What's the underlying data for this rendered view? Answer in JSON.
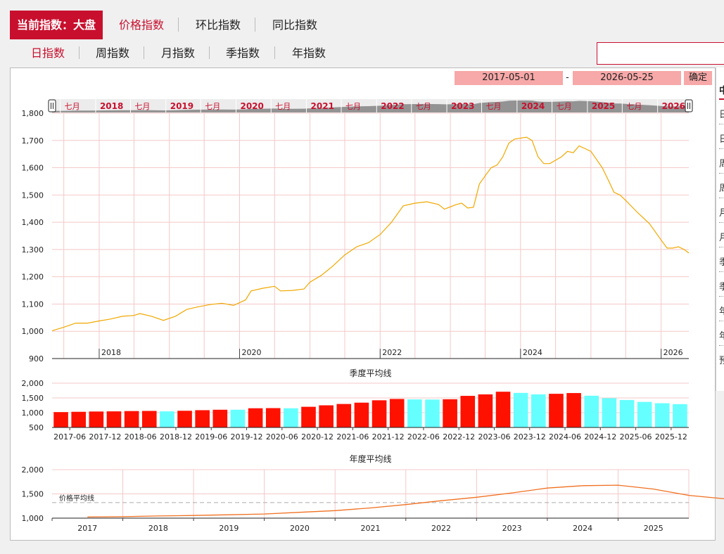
{
  "header": {
    "current_index_label": "当前指数：大盘",
    "tabs": [
      {
        "label": "价格指数",
        "active": true
      },
      {
        "label": "环比指数",
        "active": false
      },
      {
        "label": "同比指数",
        "active": false
      }
    ]
  },
  "period_tabs": [
    {
      "label": "日指数",
      "active": true
    },
    {
      "label": "周指数",
      "active": false
    },
    {
      "label": "月指数",
      "active": false
    },
    {
      "label": "季指数",
      "active": false
    },
    {
      "label": "年指数",
      "active": false
    }
  ],
  "search": {
    "value": ""
  },
  "date_range": {
    "start": "2017-05-01",
    "end": "2026-05-25",
    "separator": "-",
    "confirm_label": "确定"
  },
  "side_list": {
    "items": [
      "中",
      "日",
      "日",
      "周",
      "周",
      "月",
      "月",
      "季",
      "季",
      "年",
      "年",
      "预"
    ]
  },
  "navigator": {
    "labels": [
      {
        "text": "七月",
        "year": false
      },
      {
        "text": "2018",
        "year": true
      },
      {
        "text": "七月",
        "year": false
      },
      {
        "text": "2019",
        "year": true
      },
      {
        "text": "七月",
        "year": false
      },
      {
        "text": "2020",
        "year": true
      },
      {
        "text": "七月",
        "year": false
      },
      {
        "text": "2021",
        "year": true
      },
      {
        "text": "七月",
        "year": false
      },
      {
        "text": "2022",
        "year": true
      },
      {
        "text": "七月",
        "year": false
      },
      {
        "text": "2023",
        "year": true
      },
      {
        "text": "七月",
        "year": false
      },
      {
        "text": "2024",
        "year": true
      },
      {
        "text": "七月",
        "year": false
      },
      {
        "text": "2025",
        "year": true
      },
      {
        "text": "七月",
        "year": false
      },
      {
        "text": "2026",
        "year": true
      }
    ]
  },
  "colors": {
    "accent": "#c8102e",
    "line": "#f0a800",
    "bar_up": "#ff1100",
    "bar_down": "#66ffff",
    "annual_line": "#f07020",
    "grid": "#f4c8c8"
  },
  "chart_data": [
    {
      "type": "line",
      "title": "",
      "ylim": [
        900,
        1800
      ],
      "yticks": [
        "900",
        "1,000",
        "1,100",
        "1,200",
        "1,300",
        "1,400",
        "1,500",
        "1,600",
        "1,700",
        "1,800"
      ],
      "xtick_labels": [
        "2018",
        "2020",
        "2022",
        "2024",
        "2026"
      ],
      "x_range": [
        "2017-05-01",
        "2026-05-25"
      ],
      "points": [
        [
          "2017-05-01",
          1002
        ],
        [
          "2017-07-01",
          1015
        ],
        [
          "2017-09-01",
          1030
        ],
        [
          "2017-11-01",
          1030
        ],
        [
          "2018-01-01",
          1038
        ],
        [
          "2018-03-01",
          1045
        ],
        [
          "2018-05-01",
          1055
        ],
        [
          "2018-07-01",
          1058
        ],
        [
          "2018-08-01",
          1065
        ],
        [
          "2018-10-01",
          1055
        ],
        [
          "2018-12-01",
          1040
        ],
        [
          "2019-02-01",
          1055
        ],
        [
          "2019-04-01",
          1080
        ],
        [
          "2019-06-01",
          1090
        ],
        [
          "2019-08-01",
          1098
        ],
        [
          "2019-10-01",
          1103
        ],
        [
          "2019-12-01",
          1095
        ],
        [
          "2020-02-01",
          1115
        ],
        [
          "2020-03-01",
          1148
        ],
        [
          "2020-05-01",
          1158
        ],
        [
          "2020-07-01",
          1165
        ],
        [
          "2020-08-01",
          1148
        ],
        [
          "2020-10-01",
          1150
        ],
        [
          "2020-12-01",
          1155
        ],
        [
          "2021-01-01",
          1180
        ],
        [
          "2021-03-01",
          1205
        ],
        [
          "2021-05-01",
          1240
        ],
        [
          "2021-07-01",
          1280
        ],
        [
          "2021-09-01",
          1310
        ],
        [
          "2021-11-01",
          1325
        ],
        [
          "2022-01-01",
          1355
        ],
        [
          "2022-03-01",
          1400
        ],
        [
          "2022-05-01",
          1460
        ],
        [
          "2022-07-01",
          1470
        ],
        [
          "2022-09-01",
          1475
        ],
        [
          "2022-11-01",
          1465
        ],
        [
          "2022-12-01",
          1448
        ],
        [
          "2023-02-01",
          1465
        ],
        [
          "2023-03-01",
          1470
        ],
        [
          "2023-04-01",
          1452
        ],
        [
          "2023-05-01",
          1455
        ],
        [
          "2023-06-01",
          1540
        ],
        [
          "2023-07-01",
          1570
        ],
        [
          "2023-08-01",
          1600
        ],
        [
          "2023-09-01",
          1610
        ],
        [
          "2023-10-01",
          1640
        ],
        [
          "2023-11-01",
          1690
        ],
        [
          "2023-12-01",
          1705
        ],
        [
          "2024-02-01",
          1712
        ],
        [
          "2024-03-01",
          1700
        ],
        [
          "2024-04-01",
          1640
        ],
        [
          "2024-05-01",
          1615
        ],
        [
          "2024-06-01",
          1615
        ],
        [
          "2024-08-01",
          1640
        ],
        [
          "2024-09-01",
          1660
        ],
        [
          "2024-10-01",
          1655
        ],
        [
          "2024-11-01",
          1680
        ],
        [
          "2025-01-01",
          1660
        ],
        [
          "2025-03-01",
          1600
        ],
        [
          "2025-04-01",
          1555
        ],
        [
          "2025-05-01",
          1510
        ],
        [
          "2025-06-01",
          1500
        ],
        [
          "2025-07-01",
          1480
        ],
        [
          "2025-09-01",
          1435
        ],
        [
          "2025-11-01",
          1395
        ],
        [
          "2026-01-01",
          1335
        ],
        [
          "2026-02-01",
          1305
        ],
        [
          "2026-03-01",
          1305
        ],
        [
          "2026-04-01",
          1310
        ],
        [
          "2026-05-01",
          1300
        ],
        [
          "2026-05-25",
          1287
        ]
      ]
    },
    {
      "type": "bar",
      "title": "季度平均线",
      "ylim": [
        500,
        2000
      ],
      "yticks": [
        "500",
        "1,000",
        "1,500",
        "2,000"
      ],
      "xtick_labels": [
        "2017-06",
        "2017-12",
        "2018-06",
        "2018-12",
        "2019-06",
        "2019-12",
        "2020-06",
        "2020-12",
        "2021-06",
        "2021-12",
        "2022-06",
        "2022-12",
        "2023-06",
        "2023-12",
        "2024-06",
        "2024-12",
        "2025-06",
        "2025-12"
      ],
      "bars": [
        {
          "value": 1020,
          "up": true
        },
        {
          "value": 1030,
          "up": true
        },
        {
          "value": 1040,
          "up": true
        },
        {
          "value": 1045,
          "up": true
        },
        {
          "value": 1055,
          "up": true
        },
        {
          "value": 1060,
          "up": true
        },
        {
          "value": 1045,
          "up": false
        },
        {
          "value": 1065,
          "up": true
        },
        {
          "value": 1085,
          "up": true
        },
        {
          "value": 1100,
          "up": true
        },
        {
          "value": 1100,
          "up": false
        },
        {
          "value": 1150,
          "up": true
        },
        {
          "value": 1155,
          "up": true
        },
        {
          "value": 1150,
          "up": false
        },
        {
          "value": 1200,
          "up": true
        },
        {
          "value": 1250,
          "up": true
        },
        {
          "value": 1295,
          "up": true
        },
        {
          "value": 1340,
          "up": true
        },
        {
          "value": 1420,
          "up": true
        },
        {
          "value": 1465,
          "up": true
        },
        {
          "value": 1450,
          "up": false
        },
        {
          "value": 1445,
          "up": false
        },
        {
          "value": 1455,
          "up": true
        },
        {
          "value": 1570,
          "up": true
        },
        {
          "value": 1620,
          "up": true
        },
        {
          "value": 1710,
          "up": true
        },
        {
          "value": 1670,
          "up": false
        },
        {
          "value": 1620,
          "up": false
        },
        {
          "value": 1640,
          "up": true
        },
        {
          "value": 1665,
          "up": true
        },
        {
          "value": 1575,
          "up": false
        },
        {
          "value": 1490,
          "up": false
        },
        {
          "value": 1430,
          "up": false
        },
        {
          "value": 1365,
          "up": false
        },
        {
          "value": 1320,
          "up": false
        },
        {
          "value": 1290,
          "up": false
        }
      ]
    },
    {
      "type": "line",
      "title": "年度平均线",
      "ylim": [
        1000,
        2000
      ],
      "yticks": [
        "1,000",
        "1,500",
        "2,000"
      ],
      "xtick_labels": [
        "2017",
        "2018",
        "2019",
        "2020",
        "2021",
        "2022",
        "2023",
        "2024",
        "2025"
      ],
      "reference_line": {
        "label": "价格平均线",
        "value": 1320
      },
      "points": [
        [
          2017.0,
          1025
        ],
        [
          2017.5,
          1030
        ],
        [
          2018.0,
          1045
        ],
        [
          2018.5,
          1055
        ],
        [
          2019.0,
          1070
        ],
        [
          2019.5,
          1085
        ],
        [
          2020.0,
          1120
        ],
        [
          2020.5,
          1155
        ],
        [
          2021.0,
          1210
        ],
        [
          2021.5,
          1280
        ],
        [
          2022.0,
          1360
        ],
        [
          2022.5,
          1430
        ],
        [
          2023.0,
          1520
        ],
        [
          2023.5,
          1620
        ],
        [
          2024.0,
          1670
        ],
        [
          2024.5,
          1680
        ],
        [
          2025.0,
          1600
        ],
        [
          2025.5,
          1470
        ],
        [
          2026.0,
          1400
        ]
      ]
    }
  ]
}
